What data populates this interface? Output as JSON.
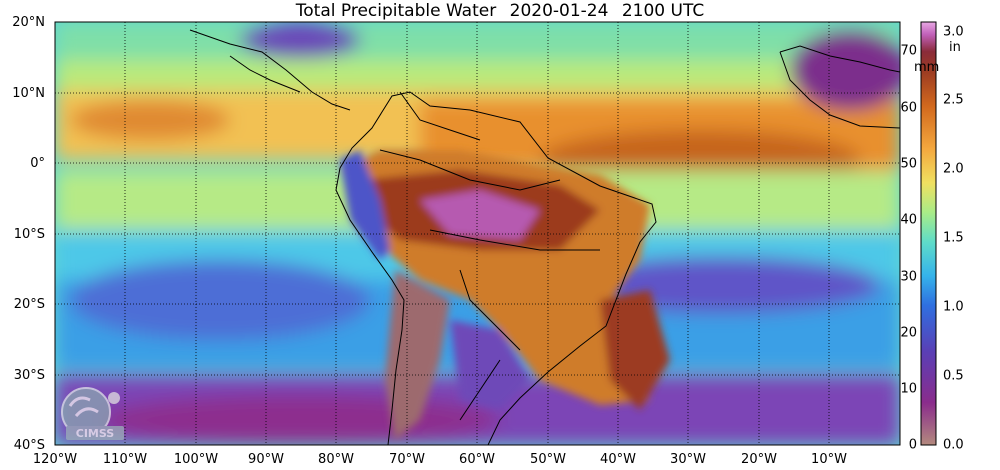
{
  "title": {
    "product": "Total Precipitable Water",
    "date": "2020-01-24",
    "time": "2100 UTC"
  },
  "lat_labels": [
    "20°N",
    "10°N",
    "0°",
    "10°S",
    "20°S",
    "30°S",
    "40°S"
  ],
  "lon_labels": [
    "120°W",
    "110°W",
    "100°W",
    "90°W",
    "80°W",
    "70°W",
    "60°W",
    "50°W",
    "40°W",
    "30°W",
    "20°W",
    "10°W"
  ],
  "colorbar": {
    "mm_ticks": [
      "70",
      "60",
      "50",
      "40",
      "30",
      "20",
      "10",
      "0"
    ],
    "in_ticks": [
      "3.0",
      "2.5",
      "2.0",
      "1.5",
      "1.0",
      "0.5",
      "0.0"
    ],
    "mm_unit": "mm",
    "in_unit": "in",
    "colors": [
      "#b38a7e",
      "#8a2c8c",
      "#6a35a8",
      "#3f4fc9",
      "#2f8fe6",
      "#3cc6e6",
      "#7fe3b4",
      "#c8ee7a",
      "#f3d45a",
      "#f3a03a",
      "#d8711f",
      "#a8481d",
      "#8a2b3a",
      "#c060b8",
      "#e4a0e0"
    ]
  },
  "logo_text": "CIMSS"
}
